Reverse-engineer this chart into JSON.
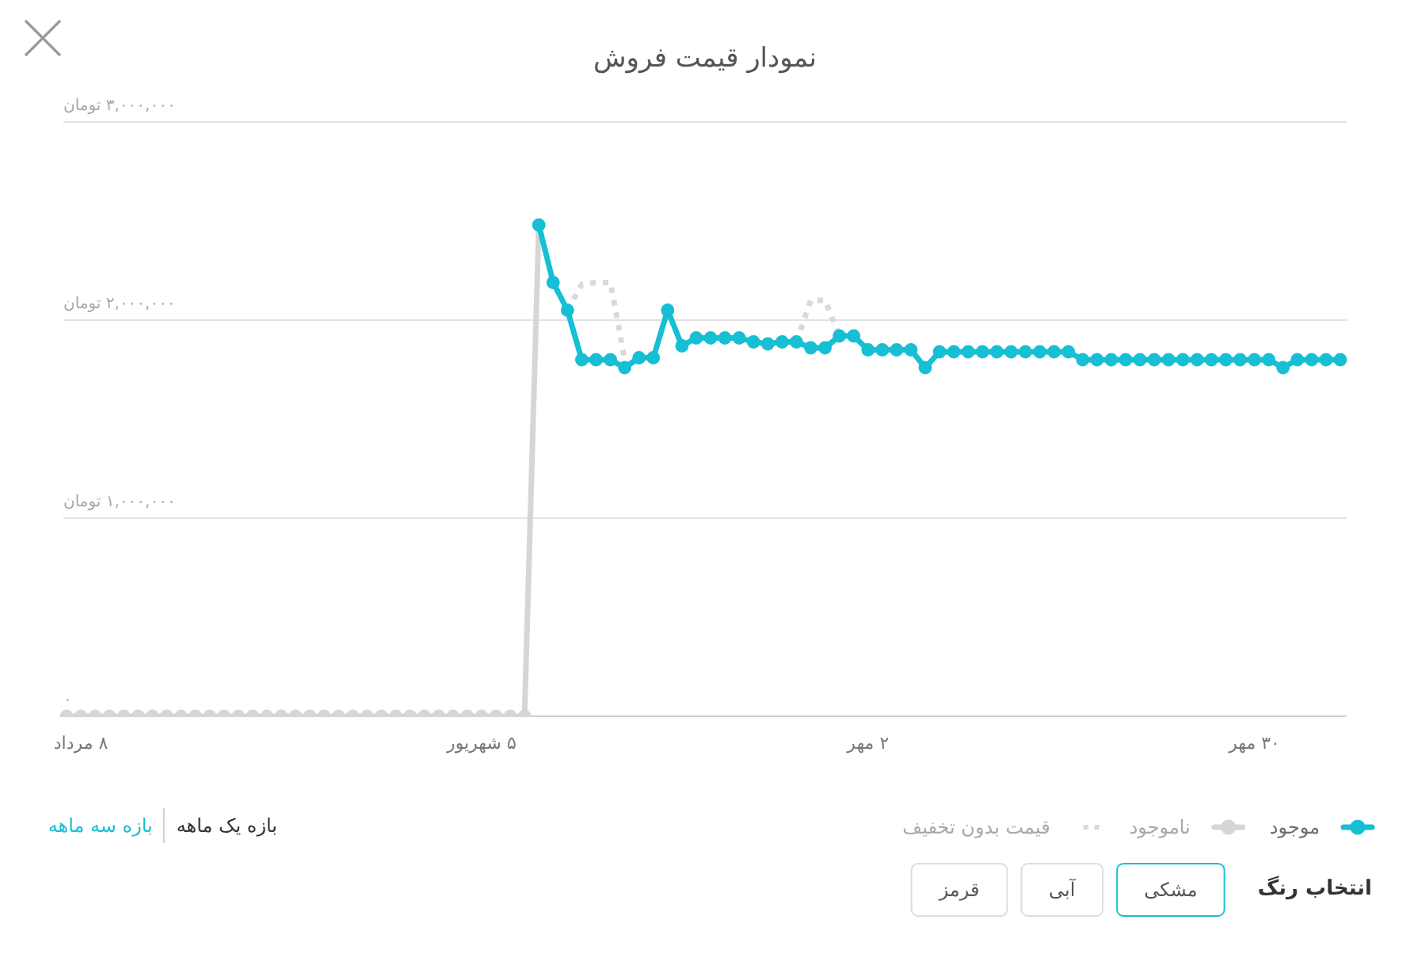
{
  "chart_data": {
    "type": "line",
    "title": "نمودار قیمت فروش",
    "categories": [
      null,
      "۸ مرداد",
      null,
      null,
      null,
      null,
      null,
      null,
      null,
      null,
      null,
      null,
      null,
      null,
      null,
      null,
      null,
      null,
      null,
      null,
      null,
      null,
      null,
      null,
      null,
      null,
      null,
      null,
      null,
      "۵ شهریور",
      null,
      null,
      null,
      null,
      null,
      null,
      null,
      null,
      null,
      null,
      null,
      null,
      null,
      null,
      null,
      null,
      null,
      null,
      null,
      null,
      null,
      null,
      null,
      null,
      null,
      null,
      "۲ مهر",
      null,
      null,
      null,
      null,
      null,
      null,
      null,
      null,
      null,
      null,
      null,
      null,
      null,
      null,
      null,
      null,
      null,
      null,
      null,
      null,
      null,
      null,
      null,
      null,
      null,
      null,
      "۳۰ مهر",
      null,
      null,
      null,
      null,
      null,
      null
    ],
    "ylim": [
      0,
      3000000
    ],
    "yticks": [
      {
        "value": 0,
        "label": "۰"
      },
      {
        "value": 1000000,
        "label": "۱,۰۰۰,۰۰۰ تومان"
      },
      {
        "value": 2000000,
        "label": "۲,۰۰۰,۰۰۰ تومان"
      },
      {
        "value": 3000000,
        "label": "۳,۰۰۰,۰۰۰ تومان"
      }
    ],
    "grid": "y",
    "legend": "bottom",
    "series": [
      {
        "name": "موجود",
        "color": "#17bfd4",
        "marker": "circle",
        "line_style": "solid",
        "values": [
          null,
          null,
          null,
          null,
          null,
          null,
          null,
          null,
          null,
          null,
          null,
          null,
          null,
          null,
          null,
          null,
          null,
          null,
          null,
          null,
          null,
          null,
          null,
          null,
          null,
          null,
          null,
          null,
          null,
          null,
          null,
          null,
          null,
          2480000,
          2190000,
          2050000,
          1800000,
          1800000,
          1800000,
          1760000,
          1810000,
          1810000,
          2050000,
          1870000,
          1910000,
          1910000,
          1910000,
          1910000,
          1890000,
          1880000,
          1890000,
          1890000,
          1860000,
          1860000,
          1920000,
          1920000,
          1850000,
          1850000,
          1850000,
          1850000,
          1760000,
          1840000,
          1840000,
          1840000,
          1840000,
          1840000,
          1840000,
          1840000,
          1840000,
          1840000,
          1840000,
          1800000,
          1800000,
          1800000,
          1800000,
          1800000,
          1800000,
          1800000,
          1800000,
          1800000,
          1800000,
          1800000,
          1800000,
          1800000,
          1800000,
          1760000,
          1800000,
          1800000,
          1800000,
          1800000
        ]
      },
      {
        "name": "ناموجود",
        "color": "#d6d6d6",
        "marker": "circle",
        "line_style": "solid",
        "values": [
          0,
          0,
          0,
          0,
          0,
          0,
          0,
          0,
          0,
          0,
          0,
          0,
          0,
          0,
          0,
          0,
          0,
          0,
          0,
          0,
          0,
          0,
          0,
          0,
          0,
          0,
          0,
          0,
          0,
          0,
          0,
          0,
          0,
          2480000,
          null,
          null,
          null,
          null,
          null,
          null,
          null,
          null,
          null,
          null,
          null,
          null,
          null,
          null,
          null,
          null,
          null,
          null,
          null,
          null,
          null,
          null,
          null,
          null,
          null,
          null,
          null,
          null,
          null,
          null,
          null,
          null,
          null,
          null,
          null,
          null,
          null,
          null,
          null,
          null,
          null,
          null,
          null,
          null,
          null,
          null,
          null,
          null,
          null,
          null,
          null,
          null,
          null,
          null,
          null,
          null
        ]
      },
      {
        "name": "قیمت بدون تخفیف",
        "color": "#d9d9d9",
        "marker": "none",
        "line_style": "dotted",
        "values": [
          null,
          null,
          null,
          null,
          null,
          null,
          null,
          null,
          null,
          null,
          null,
          null,
          null,
          null,
          null,
          null,
          null,
          null,
          null,
          null,
          null,
          null,
          null,
          null,
          null,
          null,
          null,
          null,
          null,
          null,
          null,
          null,
          null,
          null,
          null,
          2050000,
          2180000,
          2190000,
          2190000,
          1800000,
          null,
          null,
          null,
          null,
          null,
          null,
          null,
          null,
          null,
          null,
          null,
          1890000,
          2100000,
          2100000,
          1920000,
          null,
          null,
          null,
          null,
          null,
          null,
          null,
          null,
          null,
          null,
          null,
          null,
          null,
          null,
          null,
          null,
          null,
          null,
          null,
          null,
          null,
          null,
          null,
          null,
          null,
          null,
          null,
          null,
          null,
          null,
          null,
          null,
          null,
          null,
          null
        ]
      }
    ],
    "annotations": [
      "بازه یک ماهه",
      "بازه سه ماهه",
      "انتخاب رنگ",
      "مشکی",
      "آبی",
      "قرمز"
    ]
  }
}
